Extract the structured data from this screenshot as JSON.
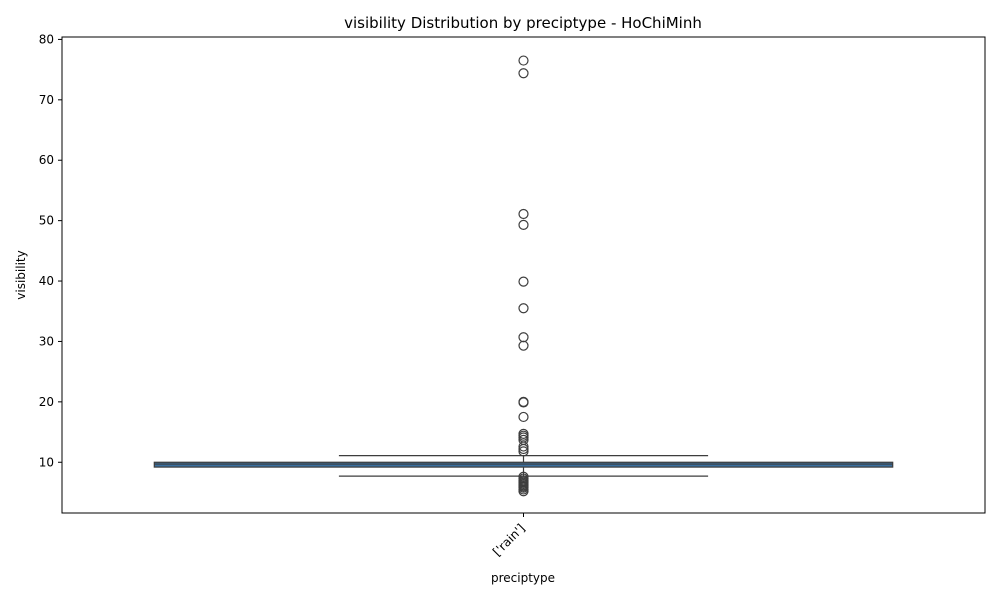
{
  "chart_data": {
    "type": "box",
    "title": "visibility Distribution by preciptype - HoChiMinh",
    "xlabel": "preciptype",
    "ylabel": "visibility",
    "categories": [
      "['rain']"
    ],
    "ylim": [
      1.6,
      80.4
    ],
    "yticks": [
      10,
      20,
      30,
      40,
      50,
      60,
      70,
      80
    ],
    "grid": false,
    "box": {
      "q1": 9.2,
      "median": 9.7,
      "q3": 10.0,
      "whisker_low": 7.7,
      "whisker_high": 11.1,
      "fill": "#3a6f9f",
      "edge": "#3d3d3d"
    },
    "outliers": [
      76.5,
      74.4,
      51.1,
      49.3,
      39.9,
      35.5,
      30.7,
      29.3,
      20.0,
      19.9,
      17.5,
      14.7,
      14.4,
      14.1,
      13.7,
      12.6,
      12.2,
      11.8,
      7.6,
      7.3,
      7.0,
      6.8,
      6.6,
      6.4,
      6.2,
      6.0,
      5.8,
      5.5,
      5.2
    ]
  }
}
